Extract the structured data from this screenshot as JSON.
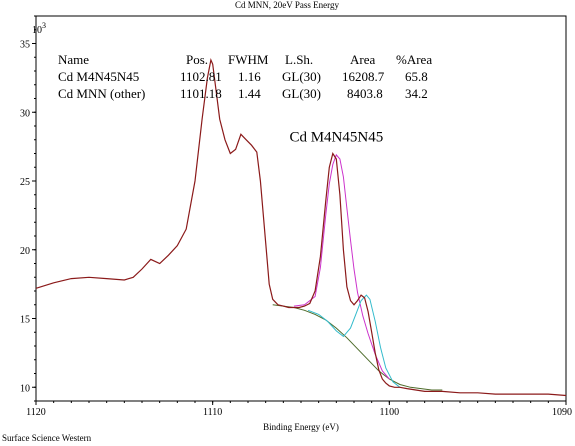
{
  "chart_data": {
    "type": "line",
    "title": "Cd MNN, 20eV Pass Energy",
    "xlabel": "Binding Energy (eV)",
    "ylabel": "",
    "y_multiplier": "10",
    "y_multiplier_exp": "3",
    "xlim": [
      1120,
      1090
    ],
    "ylim": [
      9,
      37
    ],
    "x_reversed": true,
    "grid": false,
    "x_ticks": [
      1120,
      1110,
      1100,
      1090
    ],
    "y_ticks": [
      10,
      15,
      20,
      25,
      30,
      35
    ],
    "footer": "Surface Science Western",
    "annotation": {
      "text": "Cd M4N45N45",
      "x": 1103.0,
      "y": 27.5
    },
    "table": {
      "headers": [
        "Name",
        "Pos.",
        "FWHM",
        "L.Sh.",
        "Area",
        "%Area"
      ],
      "rows": [
        {
          "name": "Cd M4N45N45",
          "pos": "1102.81",
          "fwhm": "1.16",
          "lsh": "GL(30)",
          "area": "16208.7",
          "pct": "65.8",
          "color": "#cc33cc"
        },
        {
          "name": "Cd MNN (other)",
          "pos": "1101.18",
          "fwhm": "1.44",
          "lsh": "GL(30)",
          "area": "8403.8",
          "pct": "34.2",
          "color": "#33bbcc"
        }
      ]
    },
    "series": [
      {
        "role": "spectrum",
        "color": "#8b1a1a",
        "x": [
          1120.0,
          1119.0,
          1118.0,
          1117.0,
          1116.0,
          1115.0,
          1114.5,
          1114.0,
          1113.5,
          1113.0,
          1112.5,
          1112.0,
          1111.5,
          1111.0,
          1110.6,
          1110.3,
          1110.1,
          1110.0,
          1109.8,
          1109.6,
          1109.3,
          1109.0,
          1108.7,
          1108.4,
          1108.1,
          1107.8,
          1107.5,
          1107.3,
          1107.0,
          1106.8,
          1106.6,
          1106.3,
          1106.0,
          1105.7,
          1105.4,
          1105.1,
          1104.8,
          1104.5,
          1104.2,
          1103.9,
          1103.6,
          1103.4,
          1103.2,
          1103.0,
          1102.8,
          1102.6,
          1102.4,
          1102.2,
          1102.0,
          1101.8,
          1101.6,
          1101.4,
          1101.2,
          1101.0,
          1100.8,
          1100.6,
          1100.4,
          1100.2,
          1100.0,
          1099.7,
          1099.4,
          1099.0,
          1098.5,
          1098.0,
          1097.0,
          1096.0,
          1095.0,
          1094.0,
          1093.0,
          1092.0,
          1091.0,
          1090.0
        ],
        "y": [
          17.2,
          17.6,
          17.9,
          18.0,
          17.9,
          17.8,
          18.0,
          18.6,
          19.3,
          19.0,
          19.6,
          20.3,
          21.5,
          25.0,
          29.5,
          32.5,
          33.8,
          33.5,
          31.5,
          29.5,
          28.0,
          27.0,
          27.3,
          28.4,
          28.0,
          27.6,
          27.1,
          25.0,
          20.5,
          17.5,
          16.4,
          16.0,
          15.9,
          15.8,
          15.8,
          15.8,
          15.9,
          16.1,
          17.0,
          19.5,
          23.5,
          26.0,
          27.0,
          26.6,
          24.0,
          20.0,
          17.3,
          16.3,
          16.0,
          16.3,
          16.7,
          16.5,
          15.5,
          14.0,
          12.5,
          11.3,
          10.6,
          10.3,
          10.1,
          10.0,
          10.0,
          9.9,
          9.8,
          9.7,
          9.7,
          9.6,
          9.6,
          9.5,
          9.5,
          9.5,
          9.5,
          9.4
        ]
      },
      {
        "role": "background",
        "color": "#4d6b2a",
        "x": [
          1106.6,
          1106.0,
          1105.4,
          1104.8,
          1104.2,
          1103.6,
          1103.0,
          1102.4,
          1101.8,
          1101.2,
          1100.6,
          1100.0,
          1099.4,
          1098.8,
          1098.2,
          1097.6,
          1097.0
        ],
        "y": [
          16.0,
          15.9,
          15.8,
          15.6,
          15.3,
          14.9,
          14.3,
          13.6,
          12.8,
          12.0,
          11.2,
          10.6,
          10.2,
          10.0,
          9.9,
          9.8,
          9.8
        ]
      },
      {
        "role": "component",
        "name": "Cd M4N45N45",
        "color": "#cc33cc",
        "x": [
          1105.4,
          1104.8,
          1104.2,
          1103.9,
          1103.6,
          1103.4,
          1103.2,
          1103.0,
          1102.8,
          1102.6,
          1102.4,
          1102.2,
          1102.0,
          1101.8,
          1101.5,
          1101.2,
          1100.8,
          1100.4,
          1100.0
        ],
        "y": [
          15.9,
          16.0,
          16.6,
          18.7,
          22.5,
          24.8,
          26.2,
          26.9,
          26.6,
          25.3,
          23.0,
          20.7,
          18.6,
          16.9,
          15.2,
          13.9,
          12.4,
          11.2,
          10.6
        ]
      },
      {
        "role": "component",
        "name": "Cd MNN (other)",
        "color": "#33bbcc",
        "x": [
          1104.6,
          1104.0,
          1103.5,
          1103.0,
          1102.6,
          1102.2,
          1101.9,
          1101.6,
          1101.3,
          1101.1,
          1100.8,
          1100.5,
          1100.2,
          1099.8,
          1099.4
        ],
        "y": [
          15.6,
          15.3,
          14.8,
          14.1,
          13.7,
          14.3,
          15.3,
          16.3,
          16.7,
          16.4,
          14.8,
          12.9,
          11.4,
          10.4,
          10.0
        ]
      }
    ]
  }
}
